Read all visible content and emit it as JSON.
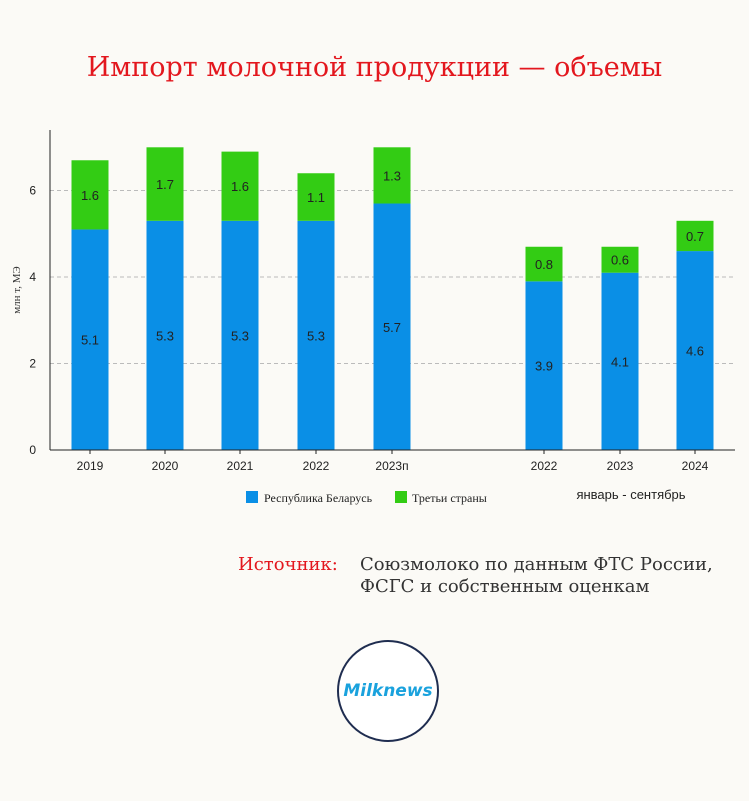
{
  "title": "Импорт молочной продукции — объемы",
  "source": {
    "label": "Источник:",
    "text_line1": "Союзмолоко по данным ФТС России,",
    "text_line2": "ФСГС и собственным оценкам"
  },
  "logo": {
    "text": "Milknews"
  },
  "colors": {
    "belarus": "#0a8fe6",
    "third": "#33cc14",
    "title": "#e3171e"
  },
  "chart_data": {
    "type": "bar",
    "stacked": true,
    "categories": [
      "2019",
      "2020",
      "2021",
      "2022",
      "2023п",
      "2022",
      "2023",
      "2024"
    ],
    "groups": [
      {
        "categories_index": [
          0,
          1,
          2,
          3,
          4
        ],
        "note": ""
      },
      {
        "categories_index": [
          5,
          6,
          7
        ],
        "note": "январь - сентябрь"
      }
    ],
    "series": [
      {
        "name": "Республика Беларусь",
        "values": [
          5.1,
          5.3,
          5.3,
          5.3,
          5.7,
          3.9,
          4.1,
          4.6
        ]
      },
      {
        "name": "Третьи страны",
        "values": [
          1.6,
          1.7,
          1.6,
          1.1,
          1.3,
          0.8,
          0.6,
          0.7
        ]
      }
    ],
    "ylabel": "млн т, МЭ",
    "yticks": [
      0,
      2,
      4,
      6
    ],
    "ylim": [
      0,
      7.4
    ],
    "grid": true,
    "legend": "bottom"
  }
}
